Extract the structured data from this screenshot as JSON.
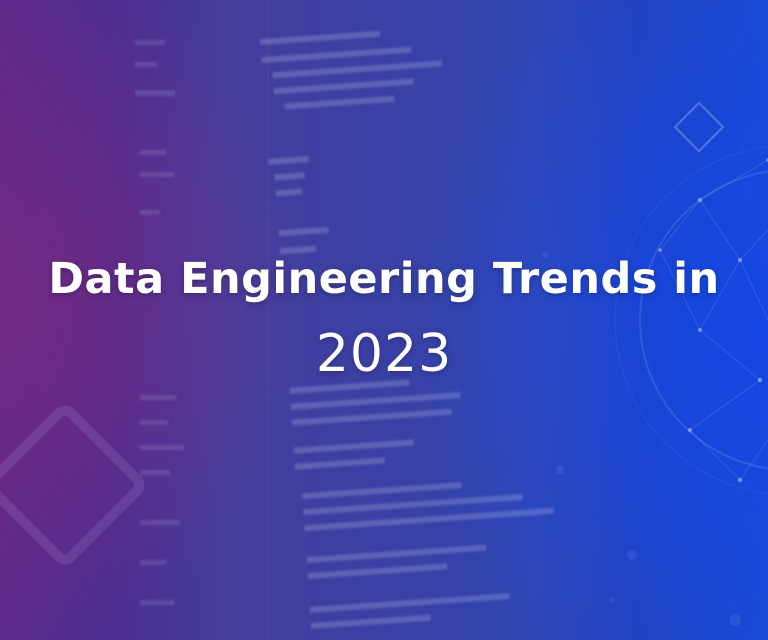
{
  "banner": {
    "title_line1": "Data Engineering Trends in",
    "title_line2": "2023"
  },
  "colors": {
    "left_purple": "#5a2a8c",
    "mid_indigo": "#3b3396",
    "right_blue": "#1a49d0",
    "text": "#ffffff"
  },
  "decor": {
    "background_icon": "code-screen-background",
    "left_shape": "diamond-outline-icon",
    "top_right_shape": "small-diamond-outline-icon",
    "right_shape": "network-globe-icon"
  }
}
